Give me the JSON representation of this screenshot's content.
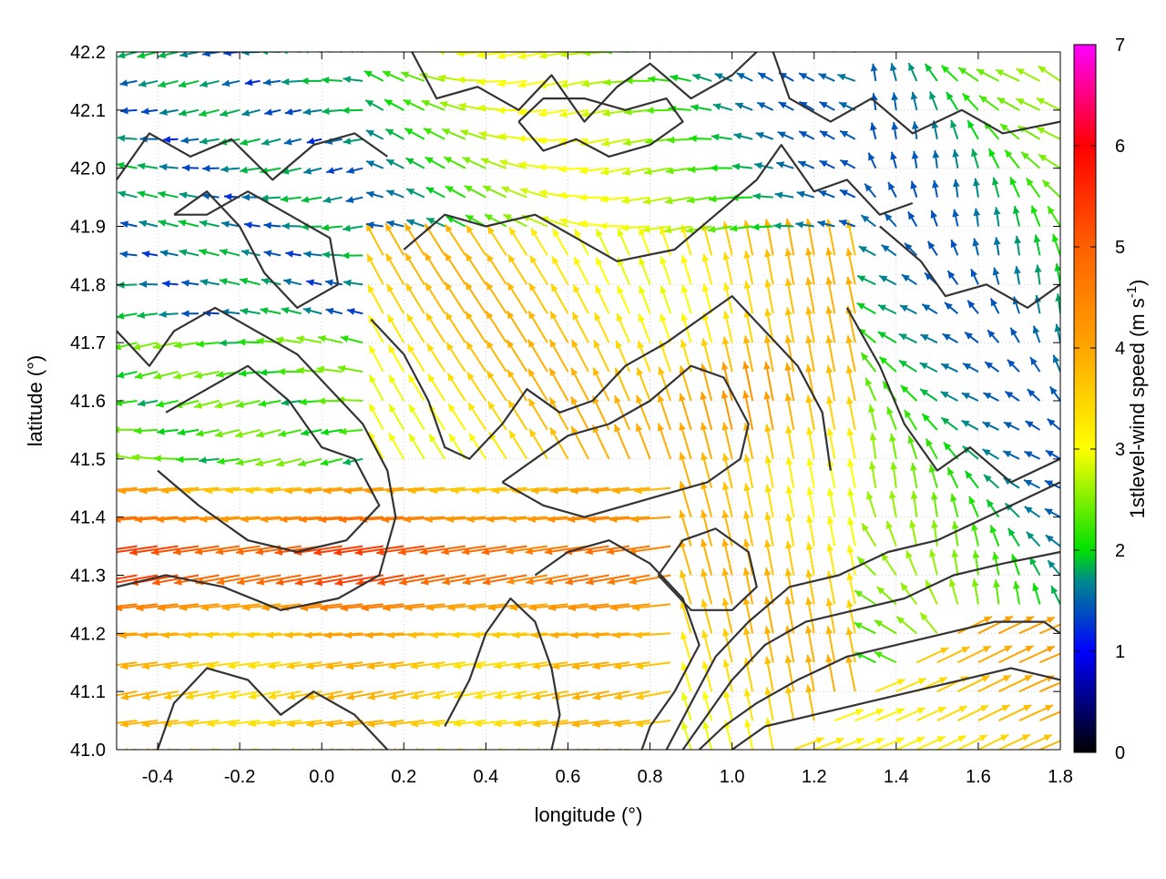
{
  "chart_data": {
    "type": "vector-field",
    "title": "",
    "xlabel": "longitude (°)",
    "ylabel": "latitude (°)",
    "xlim": [
      -0.5,
      1.8
    ],
    "ylim": [
      41.0,
      42.2
    ],
    "xticks": [
      "-0.4",
      "-0.2",
      "0.0",
      "0.2",
      "0.4",
      "0.6",
      "0.8",
      "1.0",
      "1.2",
      "1.4",
      "1.6",
      "1.8"
    ],
    "xtick_values": [
      -0.4,
      -0.2,
      0.0,
      0.2,
      0.4,
      0.6,
      0.8,
      1.0,
      1.2,
      1.4,
      1.6,
      1.8
    ],
    "yticks": [
      "41.0",
      "41.1",
      "41.2",
      "41.3",
      "41.4",
      "41.5",
      "41.6",
      "41.7",
      "41.8",
      "41.9",
      "42.0",
      "42.1",
      "42.2"
    ],
    "ytick_values": [
      41.0,
      41.1,
      41.2,
      41.3,
      41.4,
      41.5,
      41.6,
      41.7,
      41.8,
      41.9,
      42.0,
      42.1,
      42.2
    ],
    "grid": true,
    "colorbar": {
      "label_main": "1stlevel-wind speed (m s",
      "label_sup": "-1",
      "label_end": ")",
      "ticks": [
        "0",
        "1",
        "2",
        "3",
        "4",
        "5",
        "6",
        "7"
      ],
      "tick_values": [
        0,
        1,
        2,
        3,
        4,
        5,
        6,
        7
      ],
      "range": [
        0,
        7
      ],
      "stops": [
        {
          "v": 0,
          "color": "#000000"
        },
        {
          "v": 1,
          "color": "#0000ff"
        },
        {
          "v": 1.7,
          "color": "#008b8b"
        },
        {
          "v": 2,
          "color": "#00e000"
        },
        {
          "v": 3,
          "color": "#ffff00"
        },
        {
          "v": 4,
          "color": "#ffa500"
        },
        {
          "v": 5,
          "color": "#ff6000"
        },
        {
          "v": 6,
          "color": "#ff0000"
        },
        {
          "v": 7,
          "color": "#ff00ff"
        }
      ]
    },
    "contour_color": "#333333",
    "contours": [
      {
        "name": "contour-north-nw",
        "points": [
          [
            -0.5,
            41.98
          ],
          [
            -0.42,
            42.06
          ],
          [
            -0.32,
            42.02
          ],
          [
            -0.22,
            42.05
          ],
          [
            -0.12,
            41.98
          ],
          [
            -0.02,
            42.04
          ],
          [
            0.08,
            42.06
          ],
          [
            0.16,
            42.02
          ]
        ]
      },
      {
        "name": "contour-north-w-loop",
        "points": [
          [
            -0.36,
            41.92
          ],
          [
            -0.28,
            41.96
          ],
          [
            -0.2,
            41.9
          ],
          [
            -0.14,
            41.82
          ],
          [
            -0.06,
            41.76
          ],
          [
            0.04,
            41.8
          ],
          [
            0.02,
            41.88
          ],
          [
            -0.08,
            41.92
          ],
          [
            -0.18,
            41.96
          ],
          [
            -0.28,
            41.92
          ],
          [
            -0.36,
            41.92
          ]
        ]
      },
      {
        "name": "contour-north-top",
        "points": [
          [
            0.22,
            42.2
          ],
          [
            0.28,
            42.12
          ],
          [
            0.38,
            42.14
          ],
          [
            0.48,
            42.1
          ],
          [
            0.56,
            42.16
          ],
          [
            0.64,
            42.08
          ],
          [
            0.72,
            42.14
          ],
          [
            0.8,
            42.18
          ],
          [
            0.9,
            42.12
          ],
          [
            1.0,
            42.16
          ],
          [
            1.06,
            42.2
          ]
        ]
      },
      {
        "name": "contour-north-ring",
        "points": [
          [
            0.48,
            42.08
          ],
          [
            0.54,
            42.03
          ],
          [
            0.62,
            42.05
          ],
          [
            0.7,
            42.02
          ],
          [
            0.8,
            42.04
          ],
          [
            0.88,
            42.08
          ],
          [
            0.84,
            42.12
          ],
          [
            0.74,
            42.1
          ],
          [
            0.64,
            42.12
          ],
          [
            0.54,
            42.12
          ],
          [
            0.48,
            42.08
          ]
        ]
      },
      {
        "name": "contour-north-east",
        "points": [
          [
            1.1,
            42.2
          ],
          [
            1.14,
            42.12
          ],
          [
            1.24,
            42.08
          ],
          [
            1.34,
            42.12
          ],
          [
            1.44,
            42.06
          ],
          [
            1.56,
            42.1
          ],
          [
            1.66,
            42.06
          ],
          [
            1.8,
            42.08
          ]
        ]
      },
      {
        "name": "contour-north-mid",
        "points": [
          [
            0.2,
            41.86
          ],
          [
            0.3,
            41.92
          ],
          [
            0.4,
            41.9
          ],
          [
            0.52,
            41.92
          ],
          [
            0.62,
            41.88
          ],
          [
            0.72,
            41.84
          ],
          [
            0.86,
            41.86
          ],
          [
            0.96,
            41.92
          ],
          [
            1.06,
            41.98
          ],
          [
            1.12,
            42.04
          ],
          [
            1.2,
            41.96
          ],
          [
            1.28,
            41.98
          ],
          [
            1.36,
            41.92
          ],
          [
            1.44,
            41.94
          ]
        ]
      },
      {
        "name": "contour-east-upper",
        "points": [
          [
            1.36,
            41.9
          ],
          [
            1.46,
            41.84
          ],
          [
            1.52,
            41.78
          ],
          [
            1.62,
            41.8
          ],
          [
            1.72,
            41.76
          ],
          [
            1.8,
            41.8
          ]
        ]
      },
      {
        "name": "contour-east-mid",
        "points": [
          [
            1.28,
            41.76
          ],
          [
            1.36,
            41.66
          ],
          [
            1.42,
            41.56
          ],
          [
            1.5,
            41.48
          ],
          [
            1.58,
            41.52
          ],
          [
            1.68,
            41.46
          ],
          [
            1.8,
            41.5
          ]
        ]
      },
      {
        "name": "contour-central-ridge",
        "points": [
          [
            0.12,
            41.74
          ],
          [
            0.2,
            41.68
          ],
          [
            0.26,
            41.6
          ],
          [
            0.3,
            41.52
          ],
          [
            0.36,
            41.5
          ],
          [
            0.44,
            41.56
          ],
          [
            0.5,
            41.62
          ],
          [
            0.58,
            41.58
          ],
          [
            0.66,
            41.6
          ],
          [
            0.74,
            41.66
          ],
          [
            0.84,
            41.7
          ],
          [
            0.92,
            41.74
          ],
          [
            1.0,
            41.78
          ],
          [
            1.08,
            41.72
          ],
          [
            1.16,
            41.66
          ],
          [
            1.22,
            41.58
          ],
          [
            1.24,
            41.48
          ]
        ]
      },
      {
        "name": "contour-central-inner",
        "points": [
          [
            0.44,
            41.46
          ],
          [
            0.52,
            41.5
          ],
          [
            0.6,
            41.54
          ],
          [
            0.7,
            41.56
          ],
          [
            0.8,
            41.6
          ],
          [
            0.9,
            41.66
          ],
          [
            0.98,
            41.64
          ],
          [
            1.04,
            41.56
          ],
          [
            1.02,
            41.5
          ],
          [
            0.94,
            41.46
          ],
          [
            0.84,
            41.44
          ],
          [
            0.74,
            41.42
          ],
          [
            0.64,
            41.4
          ],
          [
            0.54,
            41.42
          ],
          [
            0.44,
            41.46
          ]
        ]
      },
      {
        "name": "contour-west-lobe",
        "points": [
          [
            -0.38,
            41.58
          ],
          [
            -0.28,
            41.62
          ],
          [
            -0.18,
            41.66
          ],
          [
            -0.08,
            41.6
          ],
          [
            0.0,
            41.52
          ],
          [
            0.08,
            41.5
          ],
          [
            0.14,
            41.42
          ],
          [
            0.06,
            41.36
          ],
          [
            -0.06,
            41.34
          ],
          [
            -0.18,
            41.36
          ],
          [
            -0.3,
            41.42
          ],
          [
            -0.4,
            41.48
          ]
        ]
      },
      {
        "name": "contour-west-outer",
        "points": [
          [
            -0.5,
            41.72
          ],
          [
            -0.42,
            41.66
          ],
          [
            -0.36,
            41.72
          ],
          [
            -0.26,
            41.76
          ],
          [
            -0.16,
            41.72
          ],
          [
            -0.06,
            41.68
          ],
          [
            0.02,
            41.62
          ],
          [
            0.1,
            41.56
          ],
          [
            0.16,
            41.48
          ],
          [
            0.18,
            41.4
          ],
          [
            0.14,
            41.3
          ],
          [
            0.04,
            41.26
          ],
          [
            -0.1,
            41.24
          ],
          [
            -0.24,
            41.28
          ],
          [
            -0.38,
            41.3
          ],
          [
            -0.5,
            41.28
          ]
        ]
      },
      {
        "name": "contour-southwest",
        "points": [
          [
            -0.4,
            41.0
          ],
          [
            -0.36,
            41.08
          ],
          [
            -0.28,
            41.14
          ],
          [
            -0.18,
            41.12
          ],
          [
            -0.1,
            41.06
          ],
          [
            -0.02,
            41.1
          ],
          [
            0.08,
            41.06
          ],
          [
            0.16,
            41.0
          ]
        ]
      },
      {
        "name": "contour-south-center-a",
        "points": [
          [
            0.3,
            41.04
          ],
          [
            0.36,
            41.12
          ],
          [
            0.4,
            41.2
          ],
          [
            0.46,
            41.26
          ],
          [
            0.52,
            41.22
          ],
          [
            0.56,
            41.14
          ],
          [
            0.58,
            41.06
          ],
          [
            0.56,
            41.0
          ]
        ]
      },
      {
        "name": "contour-south-center-b",
        "points": [
          [
            0.52,
            41.3
          ],
          [
            0.6,
            41.34
          ],
          [
            0.7,
            41.36
          ],
          [
            0.8,
            41.32
          ],
          [
            0.88,
            41.26
          ],
          [
            0.92,
            41.18
          ],
          [
            0.86,
            41.1
          ],
          [
            0.8,
            41.04
          ],
          [
            0.78,
            41.0
          ]
        ]
      },
      {
        "name": "contour-coast-1",
        "points": [
          [
            0.84,
            41.0
          ],
          [
            0.9,
            41.08
          ],
          [
            0.96,
            41.16
          ],
          [
            1.04,
            41.22
          ],
          [
            1.14,
            41.28
          ],
          [
            1.26,
            41.3
          ],
          [
            1.38,
            41.34
          ],
          [
            1.5,
            41.36
          ],
          [
            1.62,
            41.4
          ],
          [
            1.74,
            41.44
          ],
          [
            1.8,
            41.46
          ]
        ]
      },
      {
        "name": "contour-coast-2",
        "points": [
          [
            0.88,
            41.0
          ],
          [
            0.94,
            41.06
          ],
          [
            1.0,
            41.12
          ],
          [
            1.08,
            41.18
          ],
          [
            1.18,
            41.22
          ],
          [
            1.3,
            41.24
          ],
          [
            1.42,
            41.26
          ],
          [
            1.54,
            41.3
          ],
          [
            1.66,
            41.32
          ],
          [
            1.8,
            41.34
          ]
        ]
      },
      {
        "name": "contour-coast-3",
        "points": [
          [
            0.92,
            41.0
          ],
          [
            0.98,
            41.04
          ],
          [
            1.06,
            41.08
          ],
          [
            1.16,
            41.12
          ],
          [
            1.28,
            41.16
          ],
          [
            1.4,
            41.18
          ],
          [
            1.52,
            41.2
          ],
          [
            1.64,
            41.22
          ],
          [
            1.76,
            41.22
          ],
          [
            1.8,
            41.2
          ]
        ]
      },
      {
        "name": "contour-southeast",
        "points": [
          [
            1.0,
            41.0
          ],
          [
            1.08,
            41.04
          ],
          [
            1.2,
            41.06
          ],
          [
            1.32,
            41.08
          ],
          [
            1.44,
            41.1
          ],
          [
            1.56,
            41.12
          ],
          [
            1.68,
            41.14
          ],
          [
            1.8,
            41.12
          ]
        ]
      },
      {
        "name": "contour-island",
        "points": [
          [
            0.82,
            41.3
          ],
          [
            0.88,
            41.36
          ],
          [
            0.96,
            41.38
          ],
          [
            1.04,
            41.34
          ],
          [
            1.06,
            41.28
          ],
          [
            1.0,
            41.24
          ],
          [
            0.9,
            41.24
          ],
          [
            0.82,
            41.3
          ]
        ]
      }
    ]
  }
}
